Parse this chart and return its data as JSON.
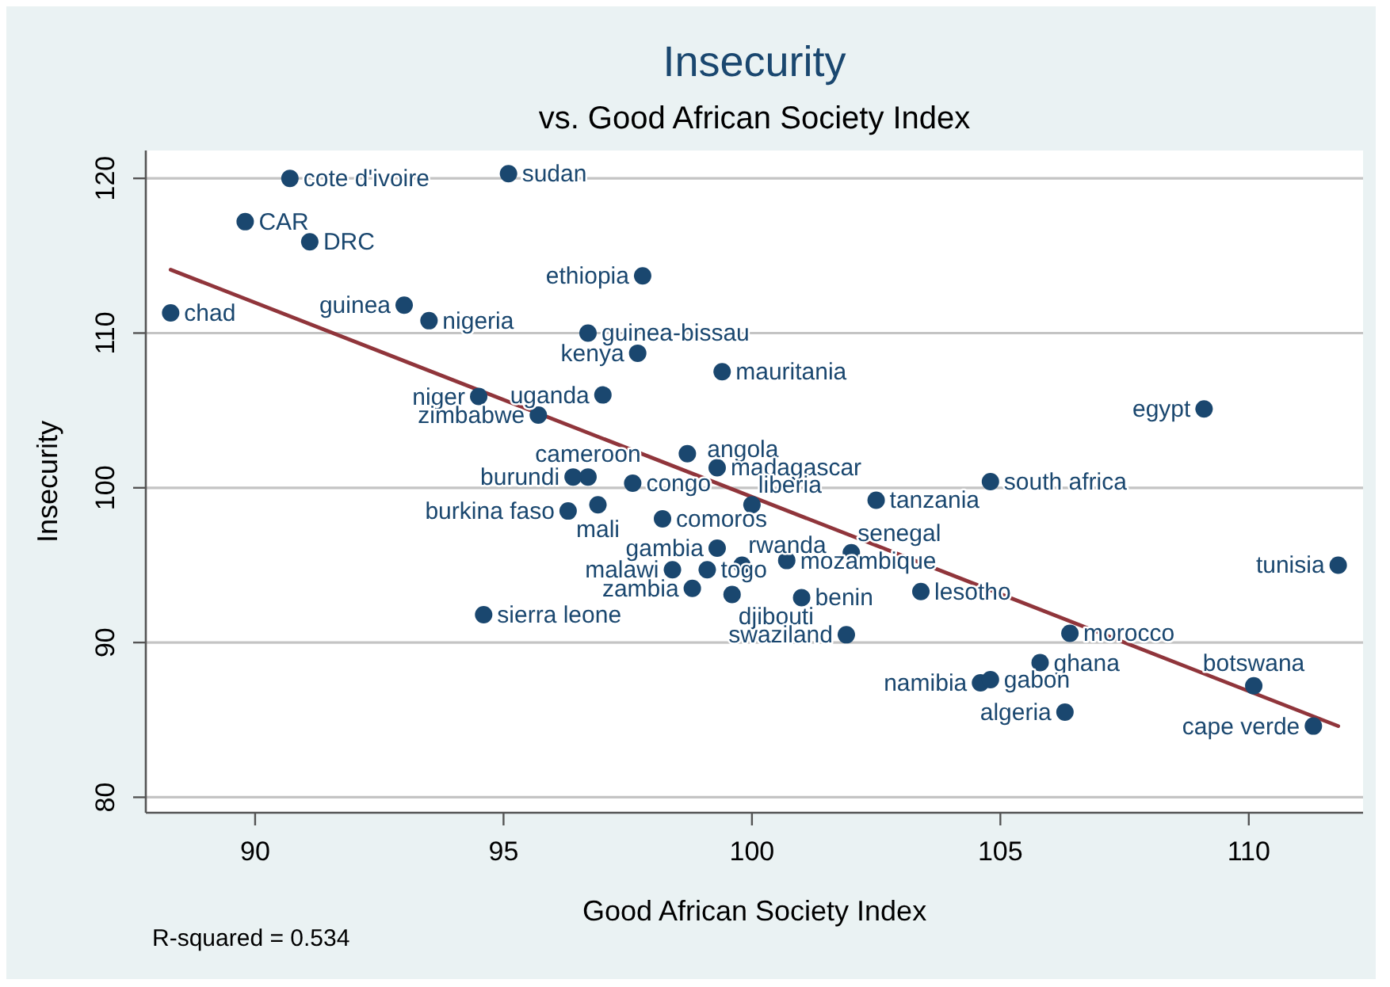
{
  "chart_data": {
    "type": "scatter",
    "title": "Insecurity",
    "subtitle": "vs. Good African Society Index",
    "xlabel": "Good African Society Index",
    "ylabel": "Insecurity",
    "annotations": [
      "R-squared = 0.534"
    ],
    "xlim": [
      87.8,
      112.3
    ],
    "ylim": [
      79,
      121.8
    ],
    "xticks": [
      90,
      95,
      100,
      105,
      110
    ],
    "yticks": [
      80,
      90,
      100,
      110,
      120
    ],
    "grid": "y",
    "marker": "circle",
    "series": [
      {
        "color": "#1a476f",
        "x": [
          88.3,
          89.8,
          90.7,
          91.1,
          95.1,
          93.0,
          93.5,
          97.8,
          96.7,
          97.7,
          99.4,
          94.5,
          97.0,
          95.7,
          109.1,
          96.7,
          96.4,
          98.7,
          99.3,
          97.6,
          100.0,
          104.8,
          96.3,
          96.9,
          98.2,
          102.5,
          102.0,
          99.3,
          99.8,
          98.4,
          99.1,
          100.7,
          98.8,
          99.6,
          101.0,
          103.4,
          94.6,
          101.9,
          106.4,
          105.8,
          104.6,
          104.8,
          106.3,
          110.1,
          111.3,
          111.8
        ],
        "values": [
          111.3,
          117.2,
          120.0,
          115.9,
          120.3,
          111.8,
          110.8,
          113.7,
          110.0,
          108.7,
          107.5,
          105.9,
          106.0,
          104.7,
          105.1,
          100.7,
          100.7,
          102.2,
          101.3,
          100.3,
          98.9,
          100.4,
          98.5,
          98.9,
          98.0,
          99.2,
          95.8,
          96.1,
          95.0,
          94.7,
          94.7,
          95.3,
          93.5,
          93.1,
          92.9,
          93.3,
          91.8,
          90.5,
          90.6,
          88.7,
          87.4,
          87.6,
          85.5,
          87.2,
          84.6,
          95.0
        ],
        "value_labels": [
          "chad",
          "CAR",
          "cote d'ivoire",
          "DRC",
          "sudan",
          "guinea",
          "nigeria",
          "ethiopia",
          "guinea-bissau",
          "kenya",
          "mauritania",
          "niger",
          "uganda",
          "zimbabwe",
          "egypt",
          "cameroon",
          "burundi",
          "angola",
          "madagascar",
          "congo",
          "liberia",
          "south africa",
          "burkina faso",
          "mali",
          "comoros",
          "tanzania",
          "senegal",
          "gambia",
          "rwanda",
          "malawi",
          "togo",
          "mozambique",
          "zambia",
          "djibouti",
          "benin",
          "lesotho",
          "sierra leone",
          "swaziland",
          "morocco",
          "ghana",
          "namibia",
          "gabon",
          "algeria",
          "botswana",
          "cape verde",
          "tunisia"
        ]
      },
      {
        "type": "line",
        "color": "#90353b",
        "line_style": "solid",
        "marker": "none",
        "x": [
          88.3,
          111.8
        ],
        "values": [
          114.1,
          84.6
        ]
      }
    ]
  }
}
